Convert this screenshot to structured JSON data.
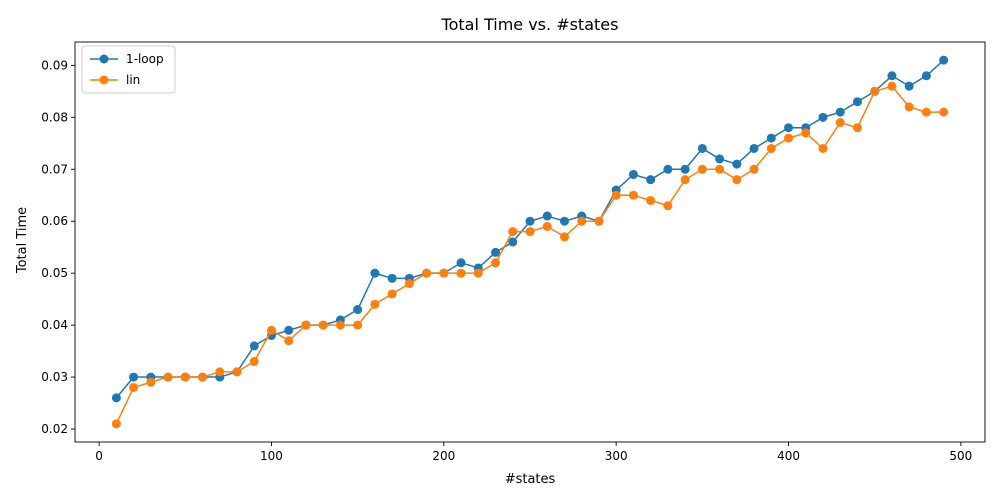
{
  "chart_data": {
    "type": "line",
    "title": "Total Time vs. #states",
    "xlabel": "#states",
    "ylabel": "Total Time",
    "xlim": [
      -14,
      514
    ],
    "ylim": [
      0.0175,
      0.0945
    ],
    "x_ticks": [
      0,
      100,
      200,
      300,
      400,
      500
    ],
    "y_ticks": [
      0.02,
      0.03,
      0.04,
      0.05,
      0.06,
      0.07,
      0.08,
      0.09
    ],
    "x_tick_labels": [
      "0",
      "100",
      "200",
      "300",
      "400",
      "500"
    ],
    "y_tick_labels": [
      "0.02",
      "0.03",
      "0.04",
      "0.05",
      "0.06",
      "0.07",
      "0.08",
      "0.09"
    ],
    "grid": false,
    "legend_position": "top-left",
    "x": [
      10,
      20,
      30,
      40,
      50,
      60,
      70,
      80,
      90,
      100,
      110,
      120,
      130,
      140,
      150,
      160,
      170,
      180,
      190,
      200,
      210,
      220,
      230,
      240,
      250,
      260,
      270,
      280,
      290,
      300,
      310,
      320,
      330,
      340,
      350,
      360,
      370,
      380,
      390,
      400,
      410,
      420,
      430,
      440,
      450,
      460,
      470,
      480,
      490
    ],
    "series": [
      {
        "name": "1-loop",
        "color": "#1f77b4",
        "values": [
          0.026,
          0.03,
          0.03,
          0.03,
          0.03,
          0.03,
          0.03,
          0.031,
          0.036,
          0.038,
          0.039,
          0.04,
          0.04,
          0.041,
          0.043,
          0.05,
          0.049,
          0.049,
          0.05,
          0.05,
          0.052,
          0.051,
          0.054,
          0.056,
          0.06,
          0.061,
          0.06,
          0.061,
          0.06,
          0.066,
          0.069,
          0.068,
          0.07,
          0.07,
          0.074,
          0.072,
          0.071,
          0.074,
          0.076,
          0.078,
          0.078,
          0.08,
          0.081,
          0.083,
          0.085,
          0.088,
          0.086,
          0.088,
          0.091
        ]
      },
      {
        "name": "lin",
        "color": "#ff7f0e",
        "values": [
          0.021,
          0.028,
          0.029,
          0.03,
          0.03,
          0.03,
          0.031,
          0.031,
          0.033,
          0.039,
          0.037,
          0.04,
          0.04,
          0.04,
          0.04,
          0.044,
          0.046,
          0.048,
          0.05,
          0.05,
          0.05,
          0.05,
          0.052,
          0.058,
          0.058,
          0.059,
          0.057,
          0.06,
          0.06,
          0.065,
          0.065,
          0.064,
          0.063,
          0.068,
          0.07,
          0.07,
          0.068,
          0.07,
          0.074,
          0.076,
          0.077,
          0.074,
          0.079,
          0.078,
          0.085,
          0.086,
          0.082,
          0.081,
          0.081
        ]
      }
    ]
  }
}
